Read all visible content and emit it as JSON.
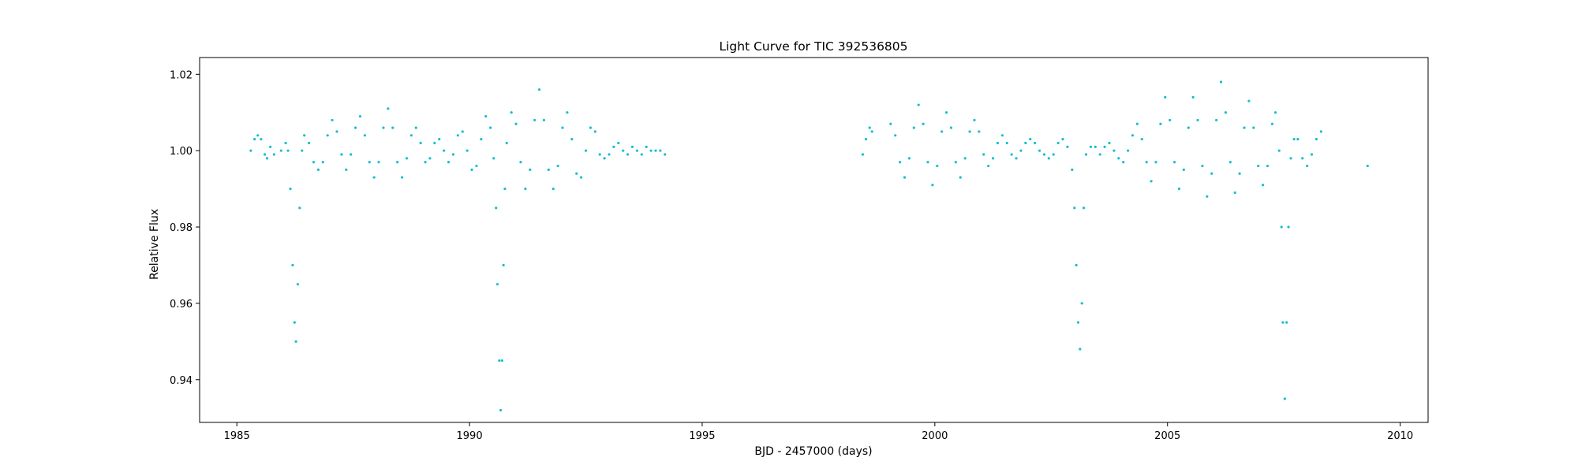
{
  "chart_data": {
    "type": "scatter",
    "title": "Light Curve for TIC 392536805",
    "xlabel": "BJD - 2457000 (days)",
    "ylabel": "Relative Flux",
    "xlim": [
      1984.2,
      2010.6
    ],
    "ylim": [
      0.9288,
      1.0244
    ],
    "x_ticks": [
      1985,
      1990,
      1995,
      2000,
      2005,
      2010
    ],
    "y_ticks": [
      0.94,
      0.96,
      0.98,
      1.0,
      1.02
    ],
    "x_tick_labels": [
      "1985",
      "1990",
      "1995",
      "2000",
      "2005",
      "2010"
    ],
    "y_tick_labels": [
      "0.94",
      "0.96",
      "0.98",
      "1.00",
      "1.02"
    ],
    "grid": false,
    "marker_color": "#17becf",
    "series": [
      {
        "points": [
          [
            1985.3,
            1.0
          ],
          [
            1985.38,
            1.003
          ],
          [
            1985.45,
            1.004
          ],
          [
            1985.52,
            1.003
          ],
          [
            1985.6,
            0.999
          ],
          [
            1985.65,
            0.998
          ],
          [
            1985.72,
            1.001
          ],
          [
            1985.8,
            0.999
          ],
          [
            1985.95,
            1.0
          ],
          [
            1986.05,
            1.002
          ],
          [
            1986.1,
            1.0
          ],
          [
            1986.15,
            0.99
          ],
          [
            1986.2,
            0.97
          ],
          [
            1986.24,
            0.955
          ],
          [
            1986.27,
            0.95
          ],
          [
            1986.31,
            0.965
          ],
          [
            1986.35,
            0.985
          ],
          [
            1986.4,
            1.0
          ],
          [
            1986.45,
            1.004
          ],
          [
            1986.55,
            1.002
          ],
          [
            1986.65,
            0.997
          ],
          [
            1986.75,
            0.995
          ],
          [
            1986.85,
            0.997
          ],
          [
            1986.95,
            1.004
          ],
          [
            1987.05,
            1.008
          ],
          [
            1987.15,
            1.005
          ],
          [
            1987.25,
            0.999
          ],
          [
            1987.35,
            0.995
          ],
          [
            1987.45,
            0.999
          ],
          [
            1987.55,
            1.006
          ],
          [
            1987.65,
            1.009
          ],
          [
            1987.75,
            1.004
          ],
          [
            1987.85,
            0.997
          ],
          [
            1987.95,
            0.993
          ],
          [
            1988.05,
            0.997
          ],
          [
            1988.15,
            1.006
          ],
          [
            1988.25,
            1.011
          ],
          [
            1988.35,
            1.006
          ],
          [
            1988.45,
            0.997
          ],
          [
            1988.55,
            0.993
          ],
          [
            1988.65,
            0.998
          ],
          [
            1988.75,
            1.004
          ],
          [
            1988.85,
            1.006
          ],
          [
            1988.95,
            1.002
          ],
          [
            1989.05,
            0.997
          ],
          [
            1989.15,
            0.998
          ],
          [
            1989.25,
            1.002
          ],
          [
            1989.35,
            1.003
          ],
          [
            1989.45,
            1.0
          ],
          [
            1989.55,
            0.997
          ],
          [
            1989.65,
            0.999
          ],
          [
            1989.75,
            1.004
          ],
          [
            1989.85,
            1.005
          ],
          [
            1989.95,
            1.0
          ],
          [
            1990.05,
            0.995
          ],
          [
            1990.15,
            0.996
          ],
          [
            1990.25,
            1.003
          ],
          [
            1990.35,
            1.009
          ],
          [
            1990.45,
            1.006
          ],
          [
            1990.52,
            0.998
          ],
          [
            1990.57,
            0.985
          ],
          [
            1990.6,
            0.965
          ],
          [
            1990.64,
            0.945
          ],
          [
            1990.67,
            0.932
          ],
          [
            1990.7,
            0.945
          ],
          [
            1990.73,
            0.97
          ],
          [
            1990.76,
            0.99
          ],
          [
            1990.8,
            1.002
          ],
          [
            1990.9,
            1.01
          ],
          [
            1991.0,
            1.007
          ],
          [
            1991.1,
            0.997
          ],
          [
            1991.2,
            0.99
          ],
          [
            1991.3,
            0.995
          ],
          [
            1991.4,
            1.008
          ],
          [
            1991.5,
            1.016
          ],
          [
            1991.6,
            1.008
          ],
          [
            1991.7,
            0.995
          ],
          [
            1991.8,
            0.99
          ],
          [
            1991.9,
            0.996
          ],
          [
            1992.0,
            1.006
          ],
          [
            1992.1,
            1.01
          ],
          [
            1992.2,
            1.003
          ],
          [
            1992.3,
            0.994
          ],
          [
            1992.4,
            0.993
          ],
          [
            1992.5,
            1.0
          ],
          [
            1992.6,
            1.006
          ],
          [
            1992.7,
            1.005
          ],
          [
            1992.8,
            0.999
          ],
          [
            1992.9,
            0.998
          ],
          [
            1993.0,
            0.999
          ],
          [
            1993.1,
            1.001
          ],
          [
            1993.2,
            1.002
          ],
          [
            1993.3,
            1.0
          ],
          [
            1993.4,
            0.999
          ],
          [
            1993.5,
            1.001
          ],
          [
            1993.6,
            1.0
          ],
          [
            1993.7,
            0.999
          ],
          [
            1993.8,
            1.001
          ],
          [
            1993.9,
            1.0
          ],
          [
            1994.0,
            1.0
          ],
          [
            1994.1,
            1.0
          ],
          [
            1994.2,
            0.999
          ],
          [
            1998.45,
            0.999
          ],
          [
            1998.52,
            1.003
          ],
          [
            1998.6,
            1.006
          ],
          [
            1998.65,
            1.005
          ],
          [
            1999.05,
            1.007
          ],
          [
            1999.15,
            1.004
          ],
          [
            1999.25,
            0.997
          ],
          [
            1999.35,
            0.993
          ],
          [
            1999.45,
            0.998
          ],
          [
            1999.55,
            1.006
          ],
          [
            1999.65,
            1.012
          ],
          [
            1999.75,
            1.007
          ],
          [
            1999.85,
            0.997
          ],
          [
            1999.95,
            0.991
          ],
          [
            2000.05,
            0.996
          ],
          [
            2000.15,
            1.005
          ],
          [
            2000.25,
            1.01
          ],
          [
            2000.35,
            1.006
          ],
          [
            2000.45,
            0.997
          ],
          [
            2000.55,
            0.993
          ],
          [
            2000.65,
            0.998
          ],
          [
            2000.75,
            1.005
          ],
          [
            2000.85,
            1.008
          ],
          [
            2000.95,
            1.005
          ],
          [
            2001.05,
            0.999
          ],
          [
            2001.15,
            0.996
          ],
          [
            2001.25,
            0.998
          ],
          [
            2001.35,
            1.002
          ],
          [
            2001.45,
            1.004
          ],
          [
            2001.55,
            1.002
          ],
          [
            2001.65,
            0.999
          ],
          [
            2001.75,
            0.998
          ],
          [
            2001.85,
            1.0
          ],
          [
            2001.95,
            1.002
          ],
          [
            2002.05,
            1.003
          ],
          [
            2002.15,
            1.002
          ],
          [
            2002.25,
            1.0
          ],
          [
            2002.35,
            0.999
          ],
          [
            2002.45,
            0.998
          ],
          [
            2002.55,
            0.999
          ],
          [
            2002.65,
            1.002
          ],
          [
            2002.75,
            1.003
          ],
          [
            2002.85,
            1.001
          ],
          [
            2002.95,
            0.995
          ],
          [
            2003.0,
            0.985
          ],
          [
            2003.04,
            0.97
          ],
          [
            2003.08,
            0.955
          ],
          [
            2003.12,
            0.948
          ],
          [
            2003.16,
            0.96
          ],
          [
            2003.2,
            0.985
          ],
          [
            2003.25,
            0.999
          ],
          [
            2003.35,
            1.001
          ],
          [
            2003.45,
            1.001
          ],
          [
            2003.55,
            0.999
          ],
          [
            2003.65,
            1.001
          ],
          [
            2003.75,
            1.002
          ],
          [
            2003.85,
            1.0
          ],
          [
            2003.95,
            0.998
          ],
          [
            2004.05,
            0.997
          ],
          [
            2004.15,
            1.0
          ],
          [
            2004.25,
            1.004
          ],
          [
            2004.35,
            1.007
          ],
          [
            2004.45,
            1.003
          ],
          [
            2004.55,
            0.997
          ],
          [
            2004.65,
            0.992
          ],
          [
            2004.75,
            0.997
          ],
          [
            2004.85,
            1.007
          ],
          [
            2004.95,
            1.014
          ],
          [
            2005.05,
            1.008
          ],
          [
            2005.15,
            0.997
          ],
          [
            2005.25,
            0.99
          ],
          [
            2005.35,
            0.995
          ],
          [
            2005.45,
            1.006
          ],
          [
            2005.55,
            1.014
          ],
          [
            2005.65,
            1.008
          ],
          [
            2005.75,
            0.996
          ],
          [
            2005.85,
            0.988
          ],
          [
            2005.95,
            0.994
          ],
          [
            2006.05,
            1.008
          ],
          [
            2006.15,
            1.018
          ],
          [
            2006.25,
            1.01
          ],
          [
            2006.35,
            0.997
          ],
          [
            2006.45,
            0.989
          ],
          [
            2006.55,
            0.994
          ],
          [
            2006.65,
            1.006
          ],
          [
            2006.75,
            1.013
          ],
          [
            2006.85,
            1.006
          ],
          [
            2006.95,
            0.996
          ],
          [
            2007.05,
            0.991
          ],
          [
            2007.15,
            0.996
          ],
          [
            2007.25,
            1.007
          ],
          [
            2007.32,
            1.01
          ],
          [
            2007.4,
            1.0
          ],
          [
            2007.45,
            0.98
          ],
          [
            2007.48,
            0.955
          ],
          [
            2007.52,
            0.935
          ],
          [
            2007.56,
            0.955
          ],
          [
            2007.6,
            0.98
          ],
          [
            2007.65,
            0.998
          ],
          [
            2007.72,
            1.003
          ],
          [
            2007.8,
            1.003
          ],
          [
            2007.9,
            0.998
          ],
          [
            2008.0,
            0.996
          ],
          [
            2008.1,
            0.999
          ],
          [
            2008.2,
            1.003
          ],
          [
            2008.3,
            1.005
          ],
          [
            2009.3,
            0.996
          ]
        ]
      }
    ]
  }
}
